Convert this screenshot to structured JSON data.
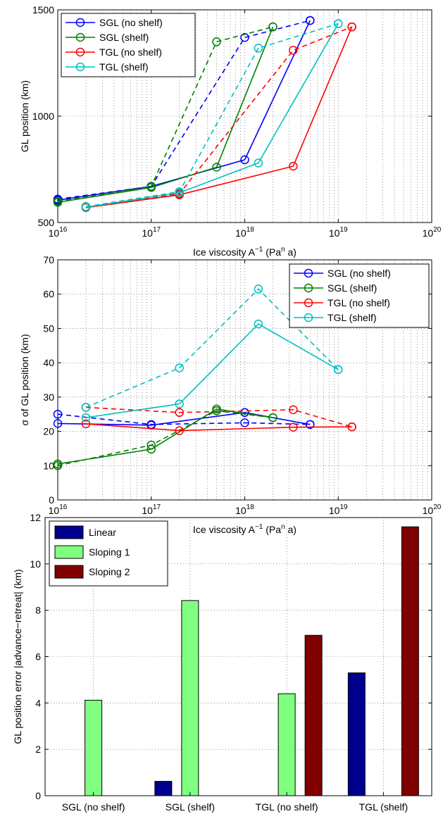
{
  "chart_data": [
    {
      "type": "line",
      "xscale": "log",
      "xlim": [
        1e+16,
        1e+20
      ],
      "ylim": [
        500,
        1500
      ],
      "xlabel": "Ice viscosity A^-1 (Pa^n a)",
      "ylabel": "GL position (km)",
      "xticks": [
        {
          "base": "10",
          "exp": "16",
          "v": 1e+16
        },
        {
          "base": "10",
          "exp": "17",
          "v": 1e+17
        },
        {
          "base": "10",
          "exp": "18",
          "v": 1e+18
        },
        {
          "base": "10",
          "exp": "19",
          "v": 1e+19
        },
        {
          "base": "10",
          "exp": "20",
          "v": 1e+20
        }
      ],
      "yticks": [
        {
          "label": "500",
          "v": 500
        },
        {
          "label": "1000",
          "v": 1000
        },
        {
          "label": "1500",
          "v": 1500
        }
      ],
      "legend_position": "top-left",
      "grid": true,
      "series": [
        {
          "name": "SGL (no shelf)",
          "color": "#0000ff",
          "solid": [
            [
              1e+16,
              605
            ],
            [
              1e+17,
              670
            ],
            [
              1e+18,
              795
            ],
            [
              5e+18,
              1450
            ]
          ],
          "dashed": [
            [
              1e+16,
              610
            ],
            [
              1e+17,
              670
            ],
            [
              1e+18,
              1370
            ],
            [
              5e+18,
              1450
            ]
          ]
        },
        {
          "name": "SGL (shelf)",
          "color": "#008000",
          "solid": [
            [
              1e+16,
              595
            ],
            [
              1e+17,
              665
            ],
            [
              5e+17,
              760
            ],
            [
              2e+18,
              1420
            ]
          ],
          "dashed": [
            [
              1e+16,
              600
            ],
            [
              1e+17,
              670
            ],
            [
              5e+17,
              1350
            ],
            [
              2e+18,
              1420
            ]
          ]
        },
        {
          "name": "TGL (no shelf)",
          "color": "#ff0000",
          "solid": [
            [
              2e+16,
              570
            ],
            [
              2e+17,
              630
            ],
            [
              3.3e+18,
              765
            ],
            [
              1.4e+19,
              1420
            ]
          ],
          "dashed": [
            [
              2e+16,
              575
            ],
            [
              2e+17,
              635
            ],
            [
              3.3e+18,
              1310
            ],
            [
              1.4e+19,
              1420
            ]
          ]
        },
        {
          "name": "TGL (shelf)",
          "color": "#00bfbf",
          "solid": [
            [
              2e+16,
              572
            ],
            [
              2e+17,
              640
            ],
            [
              1.4e+18,
              780
            ],
            [
              1e+19,
              1435
            ]
          ],
          "dashed": [
            [
              2e+16,
              575
            ],
            [
              2e+17,
              645
            ],
            [
              1.4e+18,
              1320
            ],
            [
              1e+19,
              1435
            ]
          ]
        }
      ]
    },
    {
      "type": "line",
      "xscale": "log",
      "xlim": [
        1e+16,
        1e+20
      ],
      "ylim": [
        0,
        70
      ],
      "xlabel": "Ice viscosity A^-1 (Pa^n a)",
      "ylabel": "σ of GL position (km)",
      "xticks": [
        {
          "base": "10",
          "exp": "16",
          "v": 1e+16
        },
        {
          "base": "10",
          "exp": "17",
          "v": 1e+17
        },
        {
          "base": "10",
          "exp": "18",
          "v": 1e+18
        },
        {
          "base": "10",
          "exp": "19",
          "v": 1e+19
        },
        {
          "base": "10",
          "exp": "20",
          "v": 1e+20
        }
      ],
      "yticks": [
        {
          "label": "0",
          "v": 0
        },
        {
          "label": "10",
          "v": 10
        },
        {
          "label": "20",
          "v": 20
        },
        {
          "label": "30",
          "v": 30
        },
        {
          "label": "40",
          "v": 40
        },
        {
          "label": "50",
          "v": 50
        },
        {
          "label": "60",
          "v": 60
        },
        {
          "label": "70",
          "v": 70
        }
      ],
      "legend_position": "top-right",
      "grid": true,
      "series": [
        {
          "name": "SGL (no shelf)",
          "color": "#0000ff",
          "solid": [
            [
              1e+16,
              22.3
            ],
            [
              1e+17,
              21.8
            ],
            [
              1e+18,
              25.5
            ],
            [
              5e+18,
              22
            ]
          ],
          "dashed": [
            [
              1e+16,
              25
            ],
            [
              1e+17,
              22
            ],
            [
              1e+18,
              22.5
            ],
            [
              5e+18,
              22
            ]
          ]
        },
        {
          "name": "SGL (shelf)",
          "color": "#008000",
          "solid": [
            [
              1e+16,
              10.5
            ],
            [
              1e+17,
              14.8
            ],
            [
              5e+17,
              26.5
            ],
            [
              2e+18,
              24
            ]
          ],
          "dashed": [
            [
              1e+16,
              10
            ],
            [
              1e+17,
              16
            ],
            [
              5e+17,
              26
            ],
            [
              2e+18,
              24
            ]
          ]
        },
        {
          "name": "TGL (no shelf)",
          "color": "#ff0000",
          "solid": [
            [
              2e+16,
              22.2
            ],
            [
              2e+17,
              20.2
            ],
            [
              3.3e+18,
              21.2
            ],
            [
              1.4e+19,
              21.3
            ]
          ],
          "dashed": [
            [
              2e+16,
              27
            ],
            [
              2e+17,
              25.5
            ],
            [
              3.3e+18,
              26.3
            ],
            [
              1.4e+19,
              21.3
            ]
          ]
        },
        {
          "name": "TGL (shelf)",
          "color": "#00bfbf",
          "solid": [
            [
              2e+16,
              24
            ],
            [
              2e+17,
              28
            ],
            [
              1.4e+18,
              51.3
            ],
            [
              1e+19,
              38
            ]
          ],
          "dashed": [
            [
              2e+16,
              27
            ],
            [
              2e+17,
              38.5
            ],
            [
              1.4e+18,
              61.5
            ],
            [
              1e+19,
              38
            ]
          ]
        }
      ]
    },
    {
      "type": "bar",
      "categories": [
        "SGL (no shelf)",
        "SGL (shelf)",
        "TGL (no shelf)",
        "TGL (shelf)"
      ],
      "ylim": [
        0,
        12
      ],
      "xlabel": "",
      "ylabel": "GL position error |advance−retreat| (km)",
      "yticks": [
        {
          "label": "0",
          "v": 0
        },
        {
          "label": "2",
          "v": 2
        },
        {
          "label": "4",
          "v": 4
        },
        {
          "label": "6",
          "v": 6
        },
        {
          "label": "8",
          "v": 8
        },
        {
          "label": "10",
          "v": 10
        },
        {
          "label": "12",
          "v": 12
        }
      ],
      "legend_position": "top-left",
      "grid": true,
      "series": [
        {
          "name": "Linear",
          "color": "#00008f",
          "values": [
            0,
            0.62,
            0,
            5.3
          ]
        },
        {
          "name": "Sloping 1",
          "color": "#80ff80",
          "values": [
            4.12,
            8.42,
            4.4,
            0
          ]
        },
        {
          "name": "Sloping 2",
          "color": "#800000",
          "values": [
            0,
            0,
            6.92,
            11.6
          ]
        }
      ]
    }
  ]
}
